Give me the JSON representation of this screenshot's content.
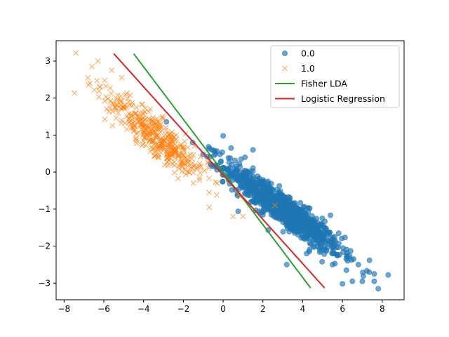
{
  "chart_data": {
    "type": "scatter",
    "title": "",
    "xlabel": "",
    "ylabel": "",
    "xlim": [
      -8.4,
      9.1
    ],
    "ylim": [
      -3.45,
      3.55
    ],
    "xticks": [
      -8,
      -6,
      -4,
      -2,
      0,
      2,
      4,
      6,
      8
    ],
    "yticks": [
      -3,
      -2,
      -1,
      0,
      1,
      2,
      3
    ],
    "grid": false,
    "legend_position": "top-right",
    "series": [
      {
        "name": "0.0",
        "kind": "scatter",
        "marker": "circle",
        "color": "#1f77b4",
        "alpha": 0.65,
        "approx_count": 1000,
        "x_mean": 3.0,
        "y_mean": -1.0,
        "x_sd": 1.45,
        "y_sd": 0.6,
        "corr": -0.93,
        "visible_outliers": [
          {
            "x": 8.3,
            "y": -2.78
          },
          {
            "x": 7.8,
            "y": -3.15
          },
          {
            "x": 7.6,
            "y": -2.95
          },
          {
            "x": 7.0,
            "y": -2.95
          },
          {
            "x": 6.0,
            "y": -3.02
          },
          {
            "x": 6.5,
            "y": -2.95
          },
          {
            "x": 7.6,
            "y": -2.75
          },
          {
            "x": 6.8,
            "y": -2.5
          },
          {
            "x": 0.0,
            "y": 0.98
          },
          {
            "x": -0.4,
            "y": 0.5
          },
          {
            "x": 0.4,
            "y": 0.65
          },
          {
            "x": 1.1,
            "y": 0.4
          },
          {
            "x": 1.5,
            "y": 0.6
          },
          {
            "x": 0.9,
            "y": 0.35
          },
          {
            "x": 3.2,
            "y": -2.5
          },
          {
            "x": 4.2,
            "y": -2.2
          },
          {
            "x": 5.5,
            "y": -2.5
          },
          {
            "x": 6.2,
            "y": -2.65
          }
        ]
      },
      {
        "name": "1.0",
        "kind": "scatter",
        "marker": "x",
        "color": "#ff7f0e",
        "alpha": 0.65,
        "approx_count": 400,
        "x_mean": -3.3,
        "y_mean": 0.95,
        "x_sd": 1.3,
        "y_sd": 0.6,
        "corr": -0.9,
        "visible_outliers": [
          {
            "x": -7.4,
            "y": 3.22
          },
          {
            "x": -6.3,
            "y": 3.0
          },
          {
            "x": -6.6,
            "y": 2.85
          },
          {
            "x": -6.8,
            "y": 2.55
          },
          {
            "x": -6.7,
            "y": 2.4
          },
          {
            "x": -6.2,
            "y": 2.3
          },
          {
            "x": -5.6,
            "y": 2.75
          },
          {
            "x": -5.1,
            "y": 2.55
          },
          {
            "x": -0.7,
            "y": -0.95
          },
          {
            "x": -0.7,
            "y": -0.55
          },
          {
            "x": 0.5,
            "y": -1.2
          },
          {
            "x": 1.0,
            "y": -1.2
          },
          {
            "x": 2.6,
            "y": -0.9
          },
          {
            "x": -1.5,
            "y": -0.3
          },
          {
            "x": 0.8,
            "y": -0.6
          },
          {
            "x": -0.3,
            "y": -0.3
          }
        ]
      },
      {
        "name": "Fisher LDA",
        "kind": "line",
        "color": "#2ca02c",
        "x": [
          -4.5,
          4.4
        ],
        "y": [
          3.2,
          -3.13
        ]
      },
      {
        "name": "Logistic Regression",
        "kind": "line",
        "color": "#d62728",
        "x": [
          -5.5,
          5.1
        ],
        "y": [
          3.2,
          -3.13
        ]
      }
    ]
  }
}
